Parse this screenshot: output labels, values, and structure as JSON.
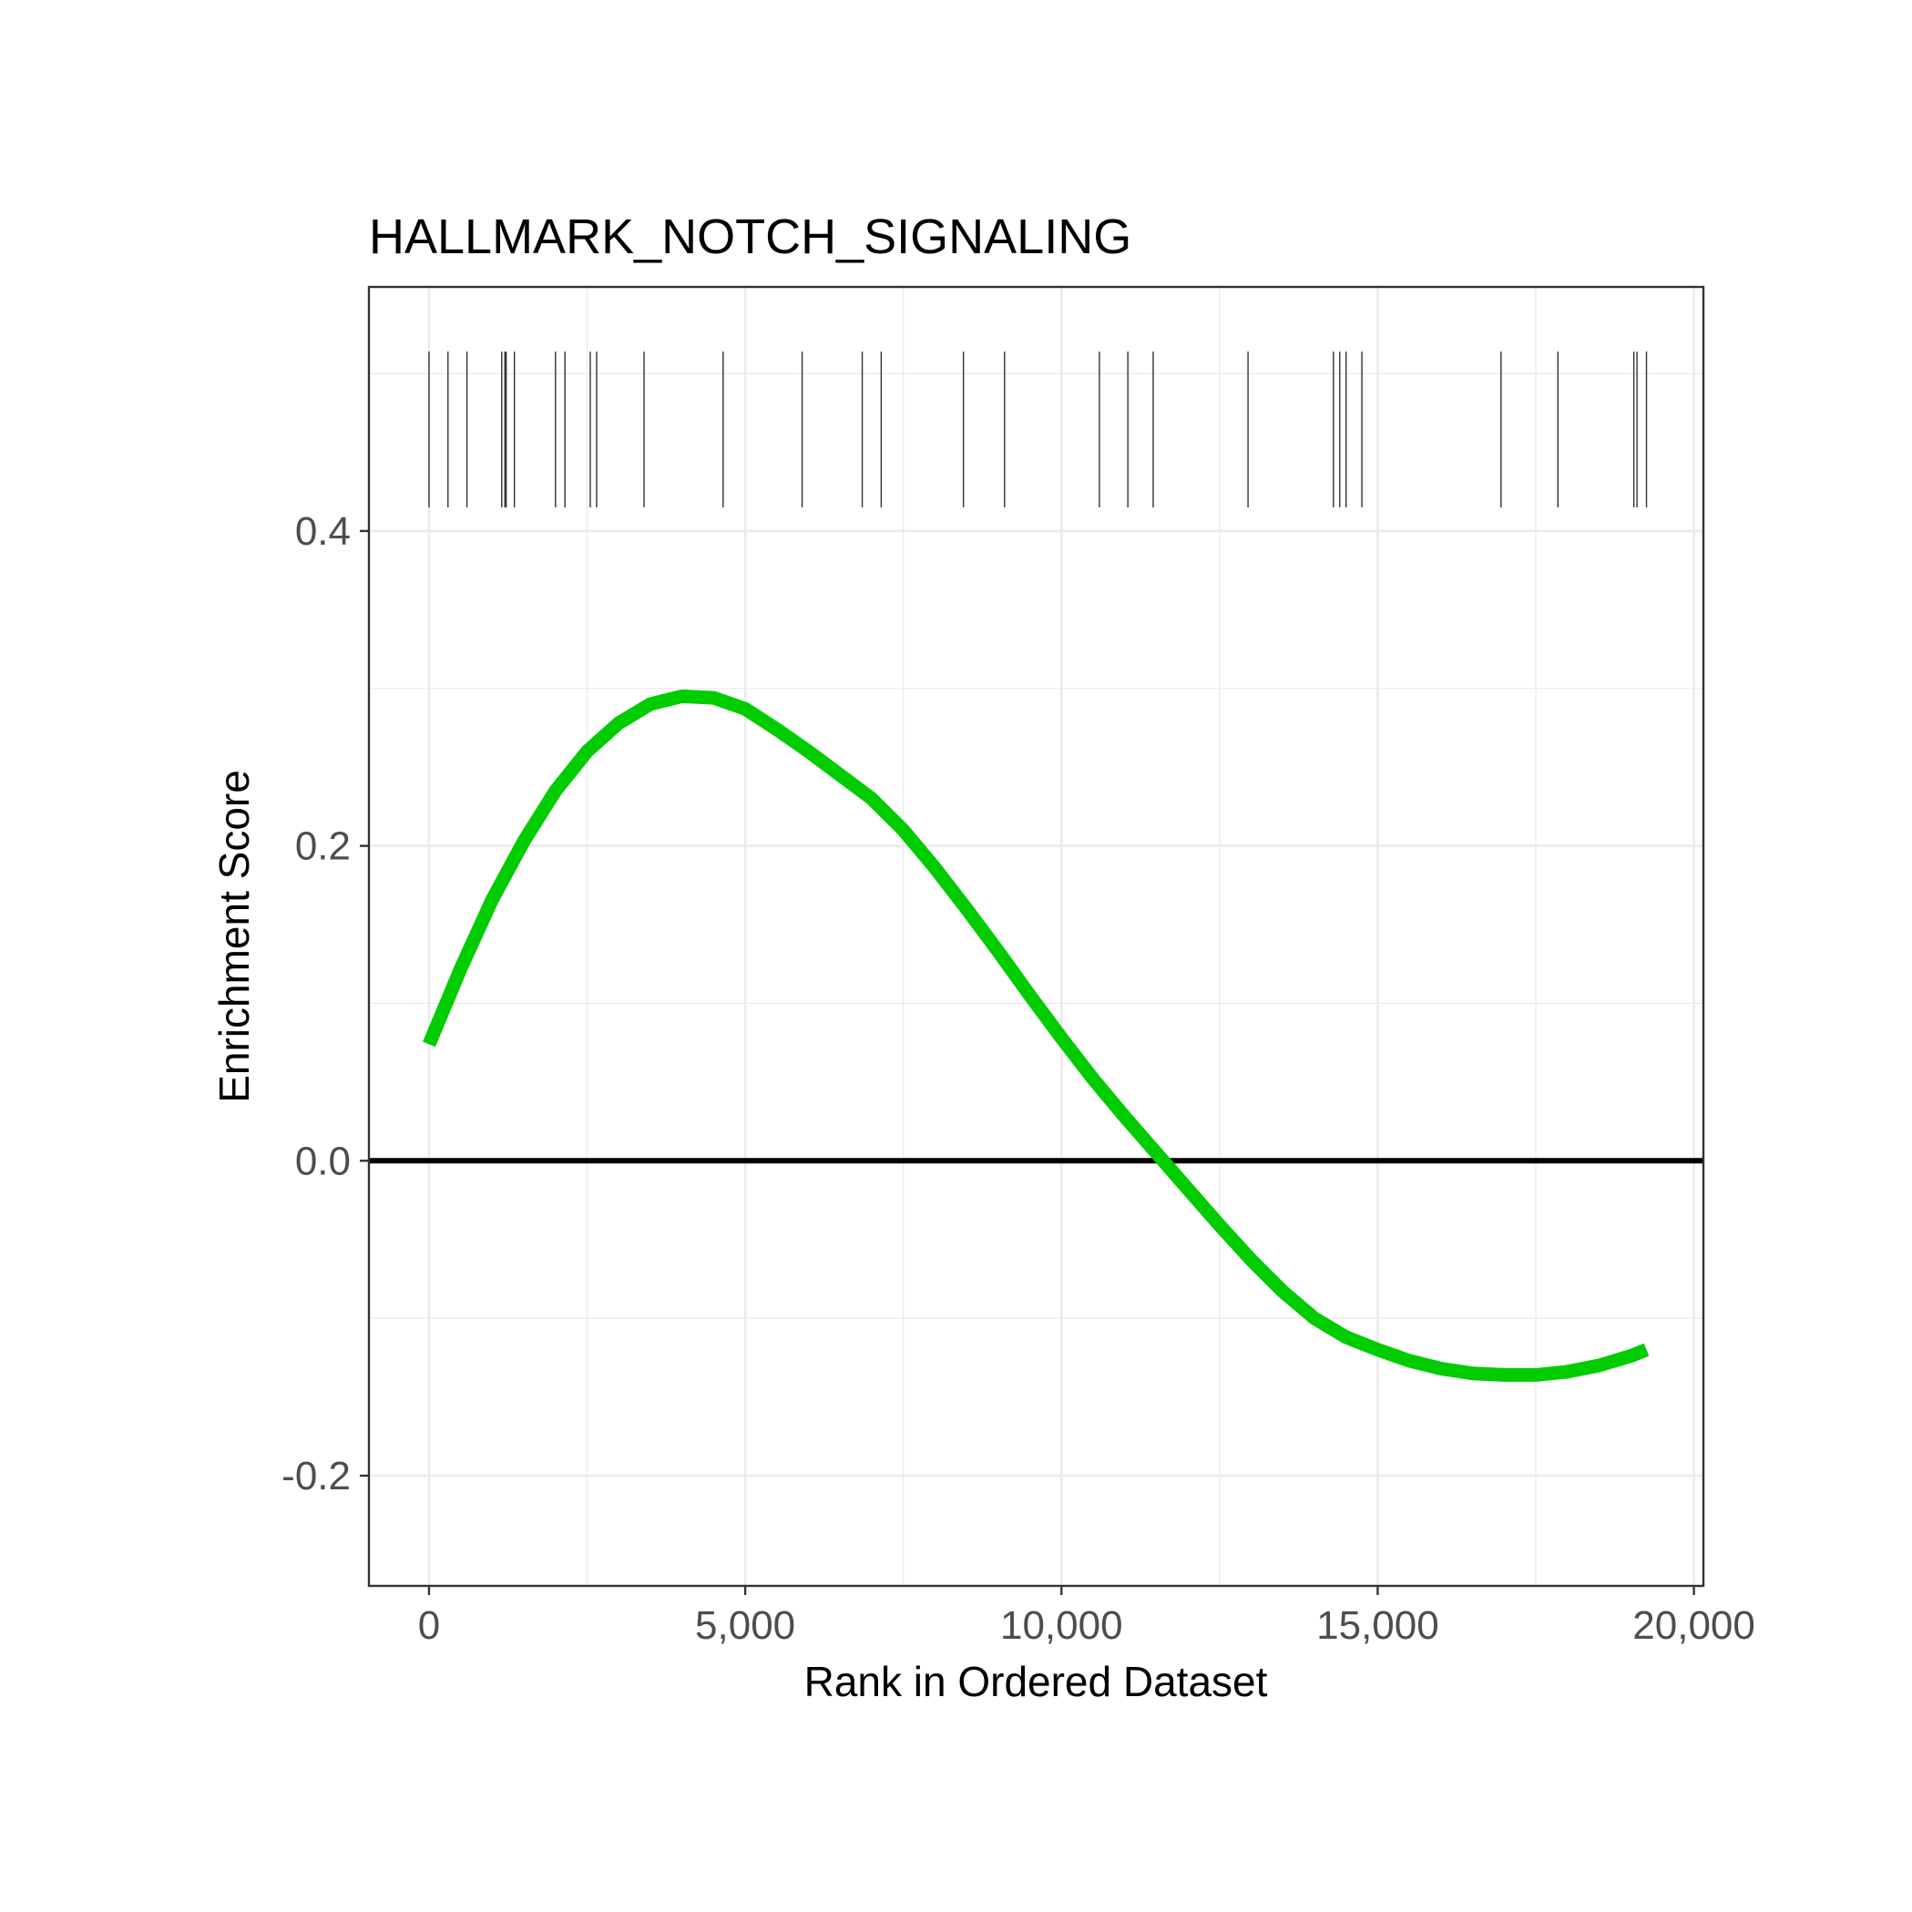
{
  "chart_data": {
    "type": "line",
    "title": "HALLMARK_NOTCH_SIGNALING",
    "xlabel": "Rank in Ordered Dataset",
    "ylabel": "Enrichment Score",
    "xlim": [
      -950,
      20150
    ],
    "ylim": [
      -0.27,
      0.555
    ],
    "x_ticks": [
      0,
      5000,
      10000,
      15000,
      20000
    ],
    "x_tick_labels": [
      "0",
      "5,000",
      "10,000",
      "15,000",
      "20,000"
    ],
    "y_ticks": [
      -0.2,
      0.0,
      0.2,
      0.4
    ],
    "y_tick_labels": [
      "-0.2",
      "0.0",
      "0.2",
      "0.4"
    ],
    "grid": true,
    "reference_line_y": 0,
    "colors": {
      "curve": "#00cc00",
      "reference_line": "#000000",
      "gene_ticks": "#333333",
      "grid": "#ebebeb",
      "panel_border": "#333333"
    },
    "series": [
      {
        "x": [
          0,
          500,
          1000,
          1500,
          2000,
          2500,
          3000,
          3500,
          4000,
          4500,
          5000,
          5500,
          6000,
          6500,
          7000,
          7500,
          8000,
          8500,
          9000,
          9500,
          10000,
          10500,
          11000,
          11500,
          12000,
          12500,
          13000,
          13500,
          14000,
          14500,
          15000,
          15500,
          16000,
          16500,
          17000,
          17500,
          18000,
          18500,
          19000,
          19250
        ],
        "y": [
          0.074,
          0.122,
          0.166,
          0.203,
          0.235,
          0.26,
          0.278,
          0.29,
          0.295,
          0.294,
          0.287,
          0.274,
          0.26,
          0.245,
          0.23,
          0.21,
          0.186,
          0.16,
          0.133,
          0.105,
          0.078,
          0.052,
          0.028,
          0.005,
          -0.018,
          -0.041,
          -0.063,
          -0.083,
          -0.1,
          -0.112,
          -0.12,
          -0.127,
          -0.132,
          -0.135,
          -0.136,
          -0.136,
          -0.134,
          -0.13,
          -0.124,
          -0.12
        ]
      }
    ],
    "gene_hits": [
      0,
      300,
      600,
      1150,
      1200,
      1220,
      1350,
      2000,
      2150,
      2550,
      2650,
      3400,
      4650,
      5900,
      6850,
      7150,
      8450,
      9100,
      10600,
      11050,
      11450,
      12950,
      14300,
      14400,
      14500,
      14750,
      16950,
      17850,
      19050,
      19100,
      19250
    ],
    "gene_hit_band": [
      0.415,
      0.514
    ]
  }
}
